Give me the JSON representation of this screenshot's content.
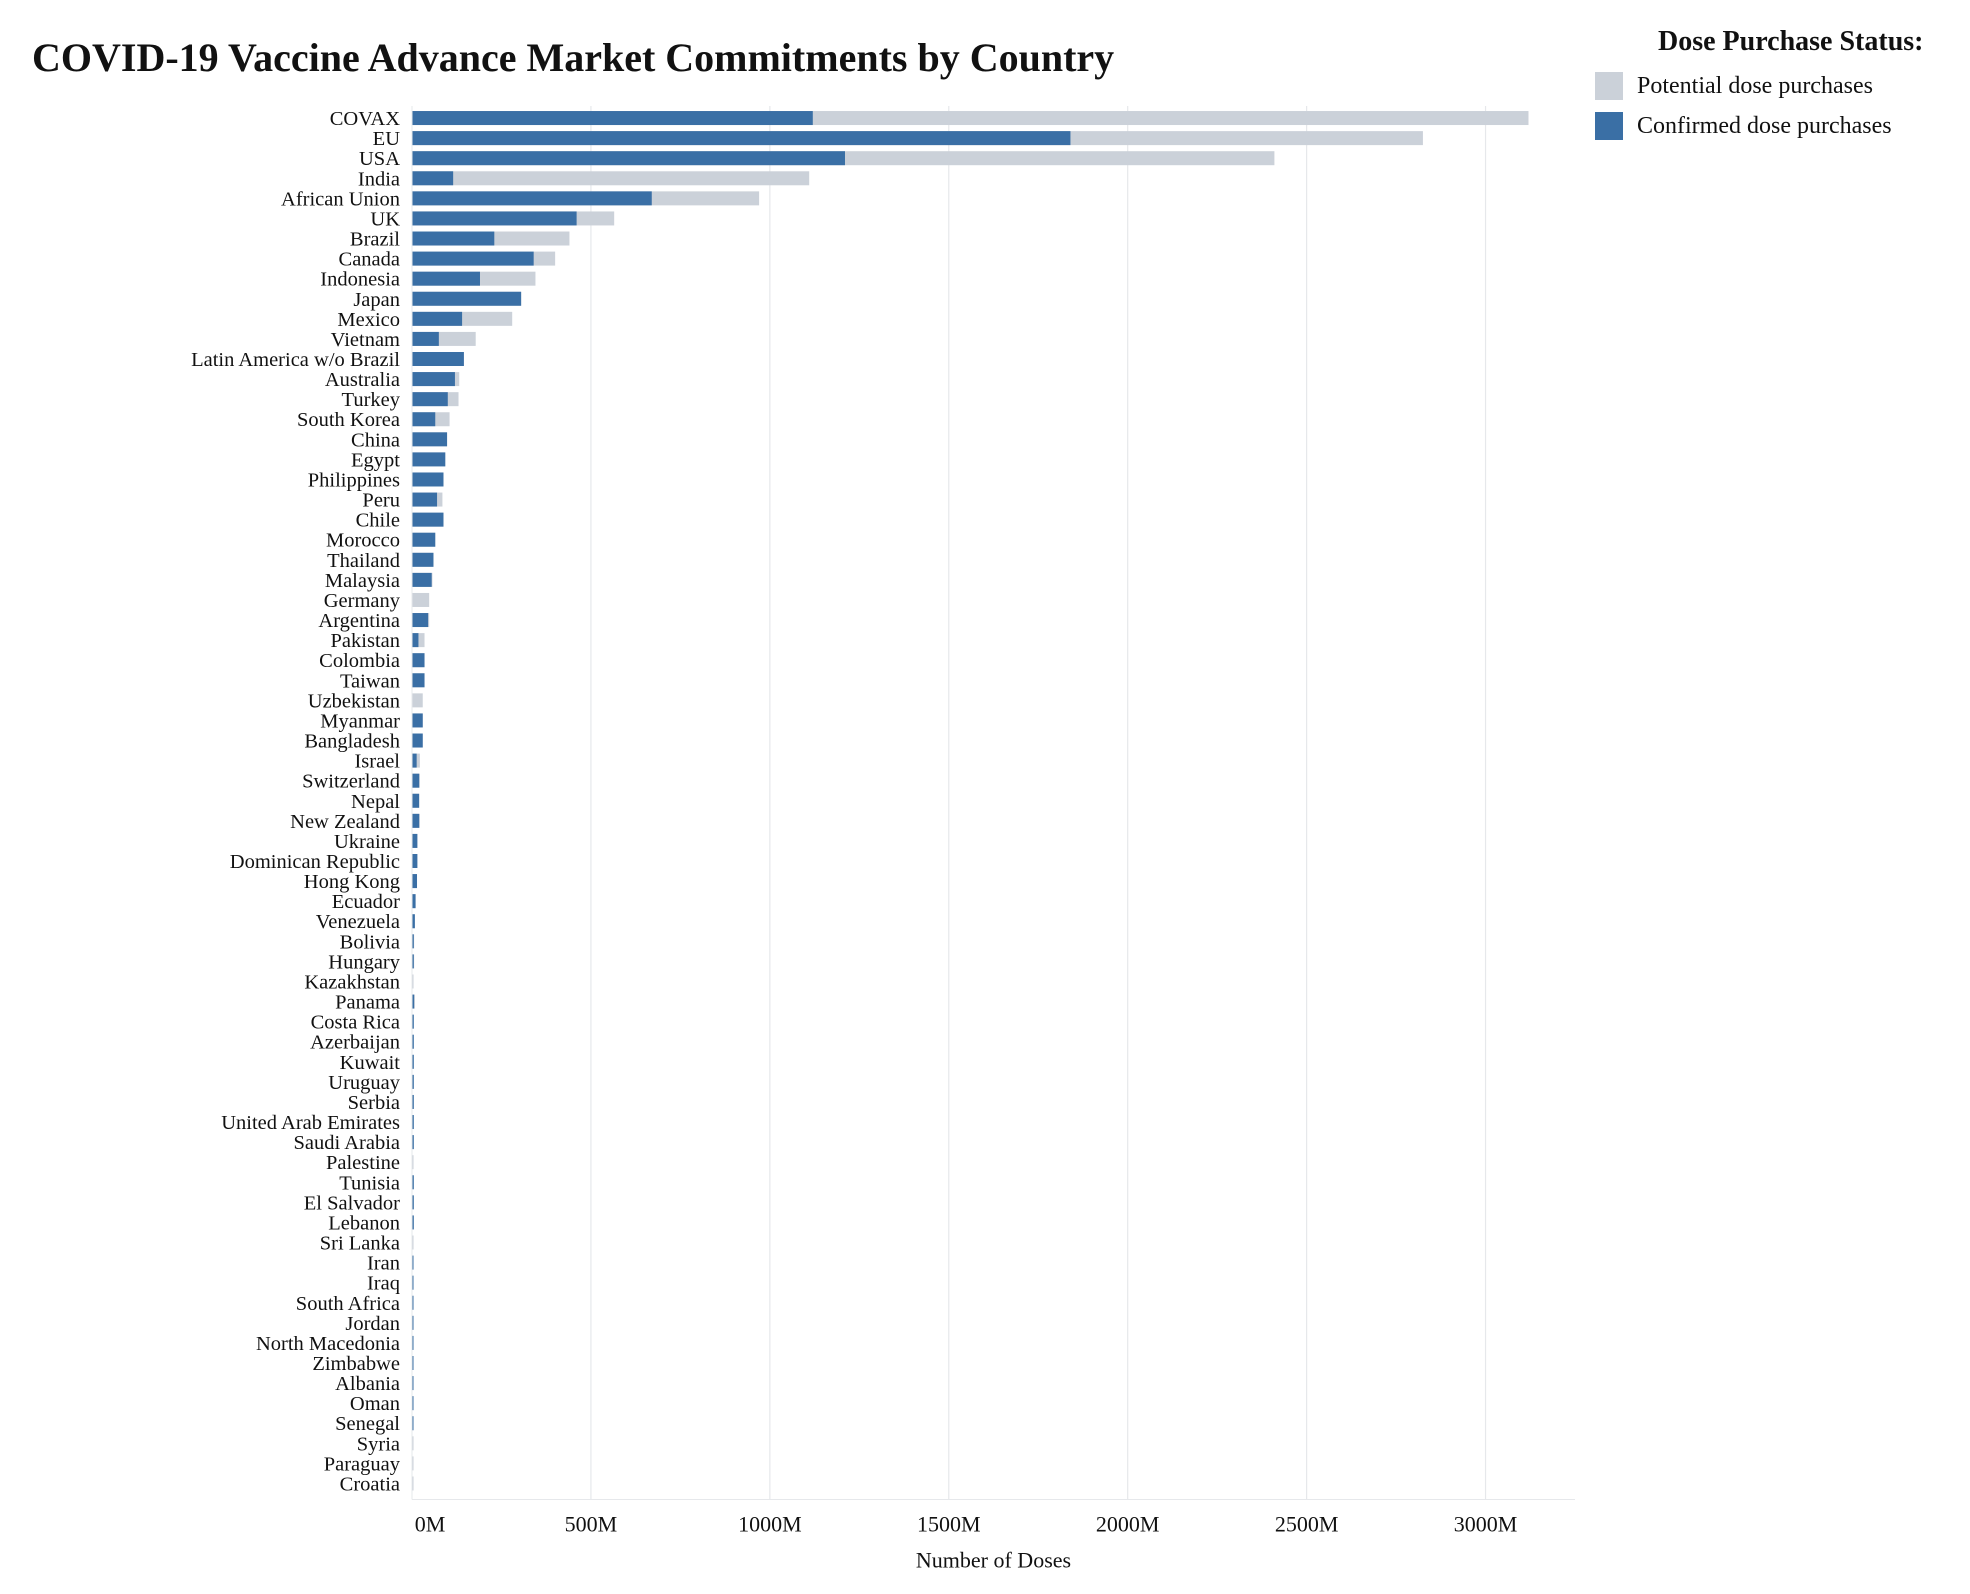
{
  "chart_data": {
    "type": "bar",
    "orientation": "horizontal",
    "stacking": "overlay",
    "title": "COVID-19 Vaccine Advance Market Commitments by Country",
    "xlabel": "Number of Doses",
    "ylabel": "",
    "xlim": [
      0,
      3250
    ],
    "unit_suffix": "M",
    "x_ticks": [
      0,
      500,
      1000,
      1500,
      2000,
      2500,
      3000
    ],
    "x_tick_labels": [
      "0M",
      "500M",
      "1000M",
      "1500M",
      "2000M",
      "2500M",
      "3000M"
    ],
    "grid": "vertical",
    "legend": {
      "title": "Dose Purchase Status:",
      "placement": "top-right",
      "entries": [
        {
          "label": "Potential dose purchases",
          "color": "#cbd1d9"
        },
        {
          "label": "Confirmed dose purchases",
          "color": "#3a6fa5"
        }
      ]
    },
    "categories": [
      "COVAX",
      "EU",
      "USA",
      "India",
      "African Union",
      "UK",
      "Brazil",
      "Canada",
      "Indonesia",
      "Japan",
      "Mexico",
      "Vietnam",
      "Latin America w/o Brazil",
      "Australia",
      "Turkey",
      "South Korea",
      "China",
      "Egypt",
      "Philippines",
      "Peru",
      "Chile",
      "Morocco",
      "Thailand",
      "Malaysia",
      "Germany",
      "Argentina",
      "Pakistan",
      "Colombia",
      "Taiwan",
      "Uzbekistan",
      "Myanmar",
      "Bangladesh",
      "Israel",
      "Switzerland",
      "Nepal",
      "New Zealand",
      "Ukraine",
      "Dominican Republic",
      "Hong Kong",
      "Ecuador",
      "Venezuela",
      "Bolivia",
      "Hungary",
      "Kazakhstan",
      "Panama",
      "Costa Rica",
      "Azerbaijan",
      "Kuwait",
      "Uruguay",
      "Serbia",
      "United Arab Emirates",
      "Saudi Arabia",
      "Palestine",
      "Tunisia",
      "El Salvador",
      "Lebanon",
      "Sri Lanka",
      "Iran",
      "Iraq",
      "South Africa",
      "Jordan",
      "North Macedonia",
      "Zimbabwe",
      "Albania",
      "Oman",
      "Senegal",
      "Syria",
      "Paraguay",
      "Croatia"
    ],
    "series": [
      {
        "name": "Potential dose purchases",
        "color": "#cbd1d9",
        "values": [
          3120,
          2825,
          2410,
          1110,
          970,
          565,
          440,
          400,
          345,
          305,
          280,
          178,
          145,
          132,
          130,
          105,
          98,
          93,
          88,
          85,
          88,
          65,
          60,
          57,
          48,
          48,
          35,
          35,
          35,
          30,
          30,
          30,
          22,
          22,
          20,
          22,
          15,
          15,
          14,
          10,
          8,
          6,
          6,
          2,
          8,
          5,
          5,
          5,
          5,
          5,
          5,
          5,
          2,
          5,
          5,
          5,
          3,
          4,
          4,
          4,
          4,
          4,
          4,
          4,
          4,
          3,
          2,
          1,
          1
        ]
      },
      {
        "name": "Confirmed dose purchases",
        "color": "#3a6fa5",
        "values": [
          1120,
          1840,
          1210,
          115,
          670,
          460,
          230,
          340,
          190,
          305,
          140,
          75,
          145,
          120,
          100,
          65,
          98,
          93,
          88,
          70,
          88,
          65,
          60,
          55,
          0,
          45,
          18,
          35,
          35,
          0,
          30,
          30,
          13,
          20,
          20,
          20,
          15,
          15,
          14,
          10,
          8,
          5,
          5,
          0,
          6,
          5,
          5,
          5,
          5,
          5,
          5,
          5,
          0,
          5,
          5,
          5,
          0,
          4,
          4,
          4,
          4,
          4,
          4,
          4,
          4,
          3,
          0,
          0,
          0
        ]
      }
    ]
  }
}
